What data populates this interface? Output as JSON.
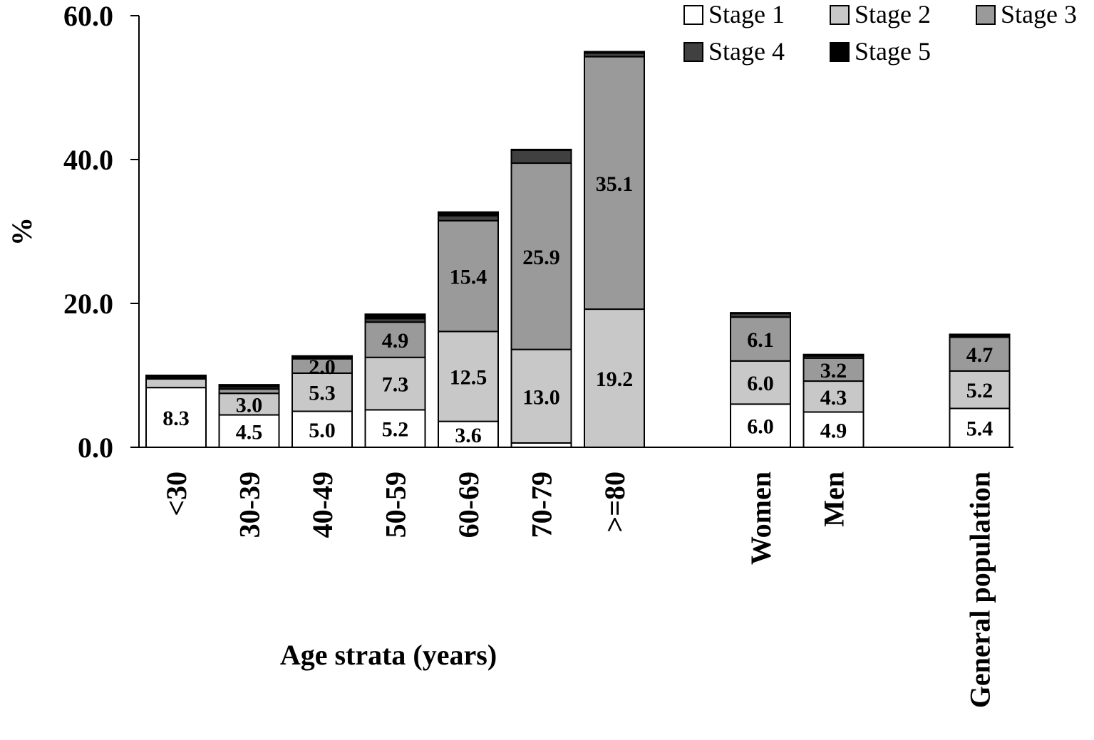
{
  "chart_data": {
    "type": "bar",
    "stacked": true,
    "title": "",
    "xlabel": "Age strata (years)",
    "ylabel": "%",
    "ylim": [
      0,
      60
    ],
    "yticks": [
      "0.0",
      "20.0",
      "40.0",
      "60.0"
    ],
    "categories": [
      "<30",
      "30-39",
      "40-49",
      "50-59",
      "60-69",
      "70-79",
      ">=80",
      "Women",
      "Men",
      "General population"
    ],
    "category_positions": [
      0,
      1,
      2,
      3,
      4,
      5,
      6,
      8,
      9,
      11
    ],
    "series": [
      {
        "name": "Stage 1",
        "color": "#ffffff",
        "values": [
          8.3,
          4.5,
          5.0,
          5.2,
          3.6,
          0.6,
          0.0,
          6.0,
          4.9,
          5.4
        ],
        "labels": [
          "8.3",
          "4.5",
          "5.0",
          "5.2",
          "3.6",
          "",
          "",
          "6.0",
          "4.9",
          "5.4"
        ]
      },
      {
        "name": "Stage 2",
        "color": "#c8c8c8",
        "values": [
          1.2,
          3.0,
          5.3,
          7.3,
          12.5,
          13.0,
          19.2,
          6.0,
          4.3,
          5.2
        ],
        "labels": [
          "",
          "3.0",
          "5.3",
          "7.3",
          "12.5",
          "13.0",
          "19.2",
          "6.0",
          "4.3",
          "5.2"
        ]
      },
      {
        "name": "Stage 3",
        "color": "#9a9a9a",
        "values": [
          0.1,
          0.6,
          2.0,
          4.9,
          15.4,
          25.9,
          35.1,
          6.1,
          3.2,
          4.7
        ],
        "labels": [
          "",
          "",
          "2.0",
          "4.9",
          "15.4",
          "25.9",
          "35.1",
          "6.1",
          "3.2",
          "4.7"
        ]
      },
      {
        "name": "Stage 4",
        "color": "#404040",
        "values": [
          0.1,
          0.3,
          0.2,
          0.5,
          0.7,
          1.8,
          0.5,
          0.5,
          0.3,
          0.2
        ],
        "labels": [
          "",
          "",
          "",
          "",
          "",
          "",
          "",
          "",
          "",
          ""
        ]
      },
      {
        "name": "Stage 5",
        "color": "#000000",
        "values": [
          0.3,
          0.3,
          0.2,
          0.6,
          0.5,
          0.1,
          0.2,
          0.1,
          0.2,
          0.2
        ],
        "labels": [
          "",
          "",
          "",
          "",
          "",
          "",
          "",
          "",
          "",
          ""
        ]
      }
    ],
    "grid": false,
    "legend_position": "top-right"
  }
}
